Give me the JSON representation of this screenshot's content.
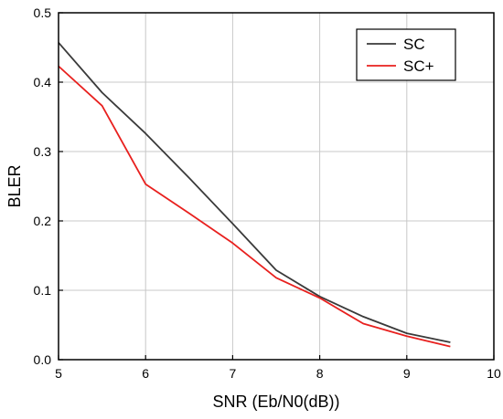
{
  "chart_data": {
    "type": "line",
    "title": "",
    "xlabel": "SNR (Eb/N0(dB))",
    "ylabel": "BLER",
    "xlim": [
      5,
      10
    ],
    "ylim": [
      0,
      0.5
    ],
    "x_ticks": [
      5,
      6,
      7,
      8,
      9,
      10
    ],
    "y_ticks": [
      0.0,
      0.1,
      0.2,
      0.3,
      0.4,
      0.5
    ],
    "x_tick_labels": [
      "5",
      "6",
      "7",
      "8",
      "9",
      "10"
    ],
    "y_tick_labels": [
      "0.0",
      "0.1",
      "0.2",
      "0.3",
      "0.4",
      "0.5"
    ],
    "grid": true,
    "legend_position": "top-right",
    "series": [
      {
        "name": "SC",
        "color": "#3a3a3a",
        "x": [
          5,
          5.5,
          6,
          6.5,
          7,
          7.5,
          8,
          8.5,
          9,
          9.5
        ],
        "y": [
          0.457,
          0.385,
          0.326,
          0.262,
          0.196,
          0.129,
          0.091,
          0.062,
          0.038,
          0.025
        ]
      },
      {
        "name": "SC+",
        "color": "#e8201e",
        "x": [
          5,
          5.5,
          6,
          6.5,
          7,
          7.5,
          8,
          8.5,
          9,
          9.5
        ],
        "y": [
          0.423,
          0.366,
          0.253,
          0.211,
          0.168,
          0.118,
          0.089,
          0.052,
          0.034,
          0.019
        ]
      }
    ]
  }
}
